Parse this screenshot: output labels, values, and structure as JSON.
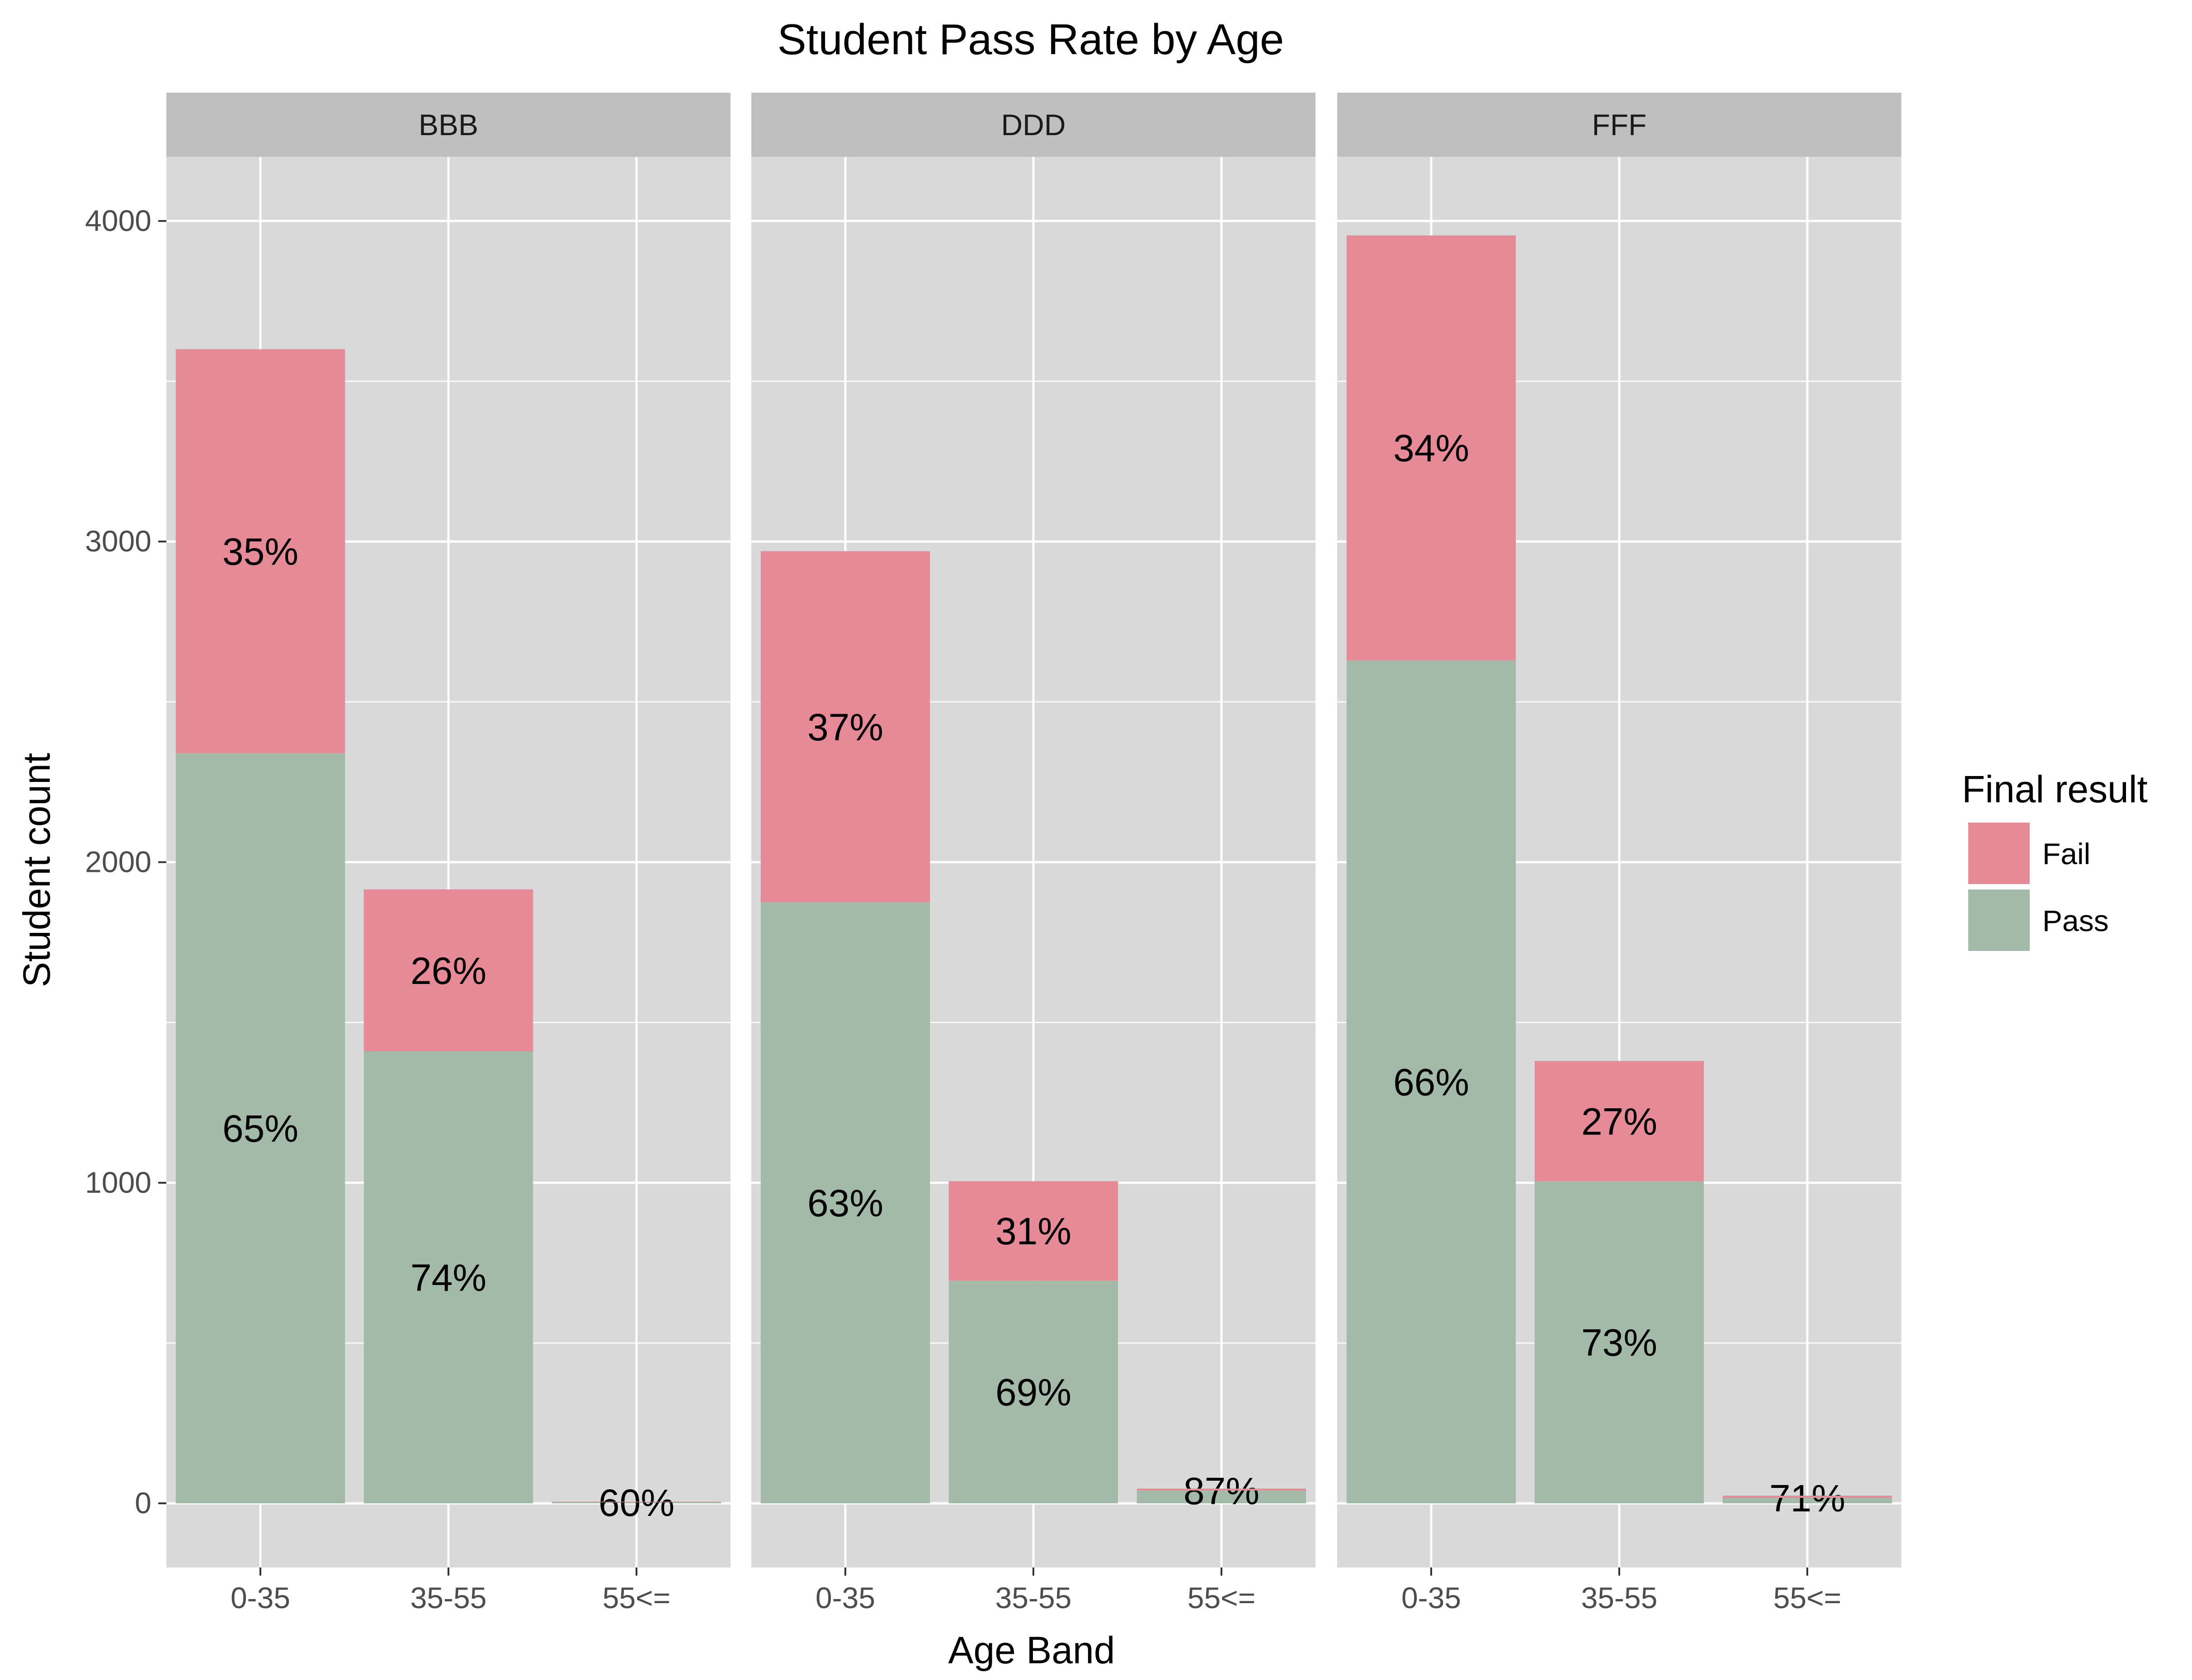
{
  "chart_data": {
    "type": "bar",
    "stacked": true,
    "title": "Student Pass Rate by Age",
    "xlabel": "Age Band",
    "ylabel": "Student count",
    "ylim": [
      -200,
      4200
    ],
    "y_ticks": [
      0,
      1000,
      2000,
      3000,
      4000
    ],
    "categories": [
      "0-35",
      "35-55",
      "55<="
    ],
    "grid": true,
    "legend": {
      "title": "Final result",
      "position": "right",
      "entries": [
        {
          "name": "Fail",
          "color": "#e68a98"
        },
        {
          "name": "Pass",
          "color": "#a3baa9"
        }
      ]
    },
    "panels": [
      {
        "facet": "BBB",
        "series": [
          {
            "name": "Pass",
            "values": [
              2340,
              1410,
              3
            ],
            "labels": [
              "65%",
              "74%",
              "60%"
            ]
          },
          {
            "name": "Fail",
            "values": [
              1260,
              505,
              2
            ],
            "labels": [
              "35%",
              "26%",
              ""
            ]
          }
        ]
      },
      {
        "facet": "DDD",
        "series": [
          {
            "name": "Pass",
            "values": [
              1875,
              695,
              40
            ],
            "labels": [
              "63%",
              "69%",
              "87%"
            ]
          },
          {
            "name": "Fail",
            "values": [
              1095,
              310,
              6
            ],
            "labels": [
              "37%",
              "31%",
              ""
            ]
          }
        ]
      },
      {
        "facet": "FFF",
        "series": [
          {
            "name": "Pass",
            "values": [
              2630,
              1005,
              17
            ],
            "labels": [
              "66%",
              "73%",
              "71%"
            ]
          },
          {
            "name": "Fail",
            "values": [
              1325,
              375,
              7
            ],
            "labels": [
              "34%",
              "27%",
              ""
            ]
          }
        ]
      }
    ]
  },
  "colors": {
    "panel_background": "#d9d9d9",
    "strip_background": "#bfbfbf",
    "grid": "#ffffff"
  }
}
